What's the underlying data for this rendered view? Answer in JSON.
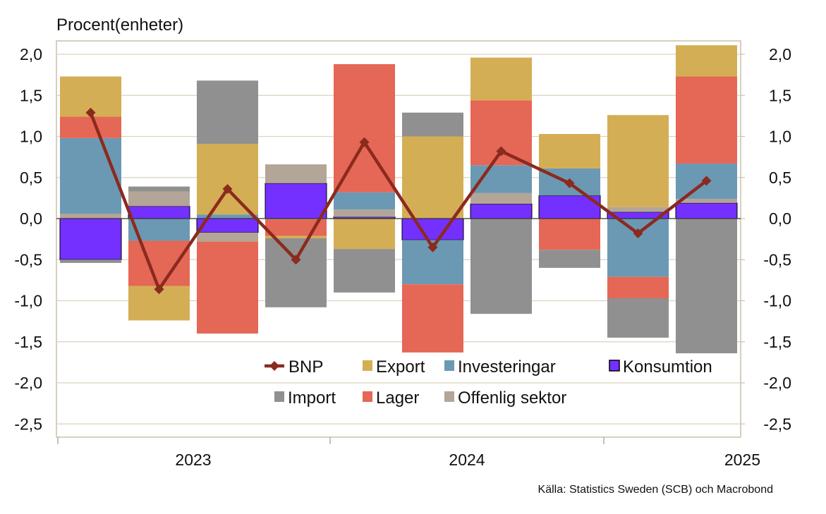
{
  "chart_data": {
    "type": "bar",
    "subtype": "stacked bar with line",
    "ylabel": "Procent(enheter)",
    "source": "Källa: Statistics Sweden (SCB)  och Macrobond",
    "ylim": [
      -2.5,
      2.2
    ],
    "yticks": [
      2.0,
      1.5,
      1.0,
      0.5,
      0.0,
      -0.5,
      -1.0,
      -1.5,
      -2.0,
      -2.5
    ],
    "ytick_labels": [
      "2,0",
      "1,5",
      "1,0",
      "0,5",
      "0,0",
      "-0,5",
      "-1,0",
      "-1,5",
      "-2,0",
      "-2,5"
    ],
    "year_labels": [
      {
        "label": "2023",
        "quarter_index": 1.5
      },
      {
        "label": "2024",
        "quarter_index": 5.5
      },
      {
        "label": "2025",
        "quarter_index": 9.5
      }
    ],
    "grid": true,
    "legend_position": "lower-right inside plot",
    "stack_order": [
      "Konsumtion",
      "Offenlig sektor",
      "Investeringar",
      "Lager",
      "Export",
      "Import"
    ],
    "series": [
      {
        "name": "Konsumtion",
        "color": "#7430FF",
        "values": [
          -0.5,
          0.15,
          -0.17,
          0.43,
          0.02,
          -0.26,
          0.18,
          0.28,
          0.08,
          0.19
        ]
      },
      {
        "name": "Offenlig sektor",
        "color": "#B3A597",
        "values": [
          0.06,
          0.18,
          -0.11,
          0.23,
          0.09,
          0.0,
          0.13,
          0.0,
          0.06,
          0.05
        ]
      },
      {
        "name": "Investeringar",
        "color": "#6B99B3",
        "values": [
          0.92,
          -0.27,
          0.05,
          -0.01,
          0.21,
          -0.54,
          0.34,
          0.33,
          -0.71,
          0.43
        ]
      },
      {
        "name": "Lager",
        "color": "#E56755",
        "values": [
          0.26,
          -0.55,
          -1.12,
          -0.2,
          1.56,
          -0.83,
          0.79,
          -0.38,
          -0.26,
          1.06
        ]
      },
      {
        "name": "Export",
        "color": "#D4AE55",
        "values": [
          0.49,
          -0.42,
          0.86,
          -0.03,
          -0.37,
          1.0,
          0.52,
          0.42,
          1.12,
          0.38
        ]
      },
      {
        "name": "Import",
        "color": "#909090",
        "values": [
          -0.04,
          0.06,
          0.77,
          -0.84,
          -0.53,
          0.29,
          -1.16,
          -0.22,
          -0.48,
          -1.64
        ]
      }
    ],
    "line_series": {
      "name": "BNP",
      "color": "#8B2A1E",
      "values": [
        1.29,
        -0.86,
        0.36,
        -0.5,
        0.93,
        -0.35,
        0.82,
        0.43,
        -0.18,
        0.46
      ]
    },
    "legend": [
      {
        "name": "BNP",
        "kind": "line-diamond",
        "color": "#8B2A1E"
      },
      {
        "name": "Export",
        "kind": "box",
        "color": "#D4AE55"
      },
      {
        "name": "Investeringar",
        "kind": "box",
        "color": "#6B99B3"
      },
      {
        "name": "Konsumtion",
        "kind": "box-outlined",
        "color": "#7430FF"
      },
      {
        "name": "Import",
        "kind": "box",
        "color": "#909090"
      },
      {
        "name": "Lager",
        "kind": "box",
        "color": "#E56755"
      },
      {
        "name": "Offenlig sektor",
        "kind": "box",
        "color": "#B3A597"
      }
    ]
  }
}
